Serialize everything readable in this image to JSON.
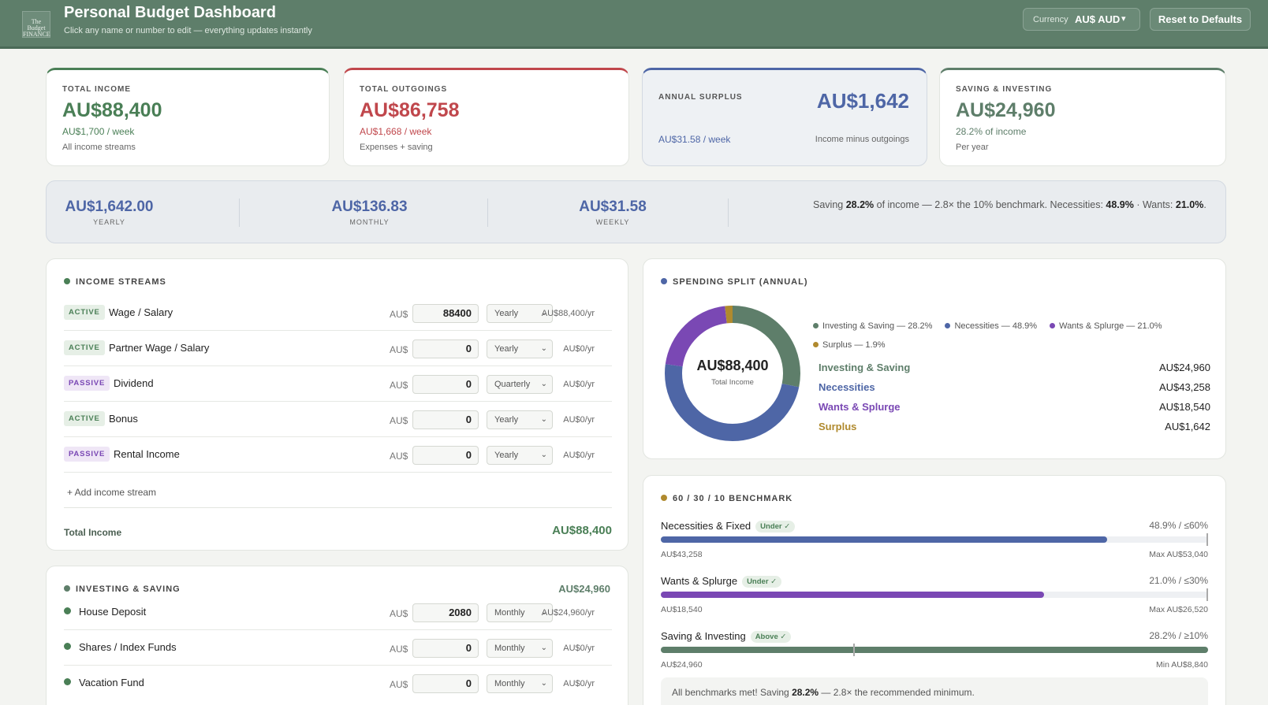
{
  "header": {
    "logo_text": "The Budget FINANCE",
    "title": "Personal Budget Dashboard",
    "subtitle": "Click any name or number to edit — everything updates instantly",
    "currency_label": "Currency",
    "currency_value": "AU$ AUD",
    "reset_label": "Reset to Defaults"
  },
  "stats": {
    "income": {
      "label": "TOTAL INCOME",
      "value": "AU$88,400",
      "sub": "AU$1,700 / week",
      "note": "All income streams"
    },
    "outgoings": {
      "label": "TOTAL OUTGOINGS",
      "value": "AU$86,758",
      "sub": "AU$1,668 / week",
      "note": "Expenses + saving"
    },
    "surplus": {
      "label": "ANNUAL SURPLUS",
      "value": "AU$1,642",
      "sub": "AU$31.58 / week",
      "note": "Income minus outgoings"
    },
    "saving": {
      "label": "SAVING & INVESTING",
      "value": "AU$24,960",
      "sub": "28.2% of income",
      "note": "Per year"
    }
  },
  "surplus_strip": {
    "yearly": {
      "value": "AU$1,642.00",
      "label": "YEARLY"
    },
    "monthly": {
      "value": "AU$136.83",
      "label": "MONTHLY"
    },
    "weekly": {
      "value": "AU$31.58",
      "label": "WEEKLY"
    },
    "msg_pre": "Saving ",
    "msg_saving": "28.2%",
    "msg_mid": " of income — 2.8× the 10% benchmark. Necessities: ",
    "msg_nec": "48.9%",
    "msg_mid2": " · Wants: ",
    "msg_wants": "21.0%",
    "msg_end": "."
  },
  "income_section": {
    "title": "INCOME STREAMS",
    "currency_prefix": "AU$",
    "rows": [
      {
        "badge": "ACTIVE",
        "name": "Wage / Salary",
        "amount": "88400",
        "frequency": "Yearly",
        "per_year": "AU$88,400/yr"
      },
      {
        "badge": "ACTIVE",
        "name": "Partner Wage / Salary",
        "amount": "0",
        "frequency": "Yearly",
        "per_year": "AU$0/yr"
      },
      {
        "badge": "PASSIVE",
        "name": "Dividend",
        "amount": "0",
        "frequency": "Quarterly",
        "per_year": "AU$0/yr"
      },
      {
        "badge": "ACTIVE",
        "name": "Bonus",
        "amount": "0",
        "frequency": "Yearly",
        "per_year": "AU$0/yr"
      },
      {
        "badge": "PASSIVE",
        "name": "Rental Income",
        "amount": "0",
        "frequency": "Yearly",
        "per_year": "AU$0/yr"
      }
    ],
    "add_label": "+ Add income stream",
    "total_label": "Total Income",
    "total_value": "AU$88,400"
  },
  "investing_section": {
    "title": "INVESTING & SAVING",
    "total": "AU$24,960",
    "currency_prefix": "AU$",
    "rows": [
      {
        "name": "House Deposit",
        "amount": "2080",
        "frequency": "Monthly",
        "per_year": "AU$24,960/yr"
      },
      {
        "name": "Shares / Index Funds",
        "amount": "0",
        "frequency": "Monthly",
        "per_year": "AU$0/yr"
      },
      {
        "name": "Vacation Fund",
        "amount": "0",
        "frequency": "Monthly",
        "per_year": "AU$0/yr"
      }
    ]
  },
  "spending_split": {
    "title": "SPENDING SPLIT (ANNUAL)",
    "center_value": "AU$88,400",
    "center_label": "Total Income",
    "legend": [
      {
        "label": "Investing & Saving — 28.2%",
        "color": "#5e7e6a"
      },
      {
        "label": "Necessities — 48.9%",
        "color": "#4e66a6"
      },
      {
        "label": "Wants & Splurge — 21.0%",
        "color": "#7a48b4"
      },
      {
        "label": "Surplus — 1.9%",
        "color": "#b08a2e"
      }
    ],
    "rows": [
      {
        "name": "Investing & Saving",
        "value": "AU$24,960"
      },
      {
        "name": "Necessities",
        "value": "AU$43,258"
      },
      {
        "name": "Wants & Splurge",
        "value": "AU$18,540"
      },
      {
        "name": "Surplus",
        "value": "AU$1,642"
      }
    ]
  },
  "chart_data": {
    "type": "pie",
    "categories": [
      "Investing & Saving",
      "Necessities",
      "Wants & Splurge",
      "Surplus"
    ],
    "values": [
      24960,
      43258,
      18540,
      1642
    ],
    "colors": [
      "#5e7e6a",
      "#4e66a6",
      "#7a48b4",
      "#b08a2e"
    ],
    "title": "SPENDING SPLIT (ANNUAL)"
  },
  "benchmark": {
    "title": "60 / 30 / 10 BENCHMARK",
    "items": [
      {
        "name": "Necessities & Fixed",
        "tag": "Under ✓",
        "ratio": "48.9% / ≤60%",
        "fill_pct": 81.5,
        "mark_pct": 100,
        "color": "#4e66a6",
        "amount": "AU$43,258",
        "limit": "Max AU$53,040"
      },
      {
        "name": "Wants & Splurge",
        "tag": "Under ✓",
        "ratio": "21.0% / ≤30%",
        "fill_pct": 70,
        "mark_pct": 100,
        "color": "#7a48b4",
        "amount": "AU$18,540",
        "limit": "Max AU$26,520"
      },
      {
        "name": "Saving & Investing",
        "tag": "Above ✓",
        "ratio": "28.2% / ≥10%",
        "fill_pct": 100,
        "mark_pct": 35.5,
        "color": "#5e7e6a",
        "amount": "AU$24,960",
        "limit": "Min AU$8,840"
      }
    ],
    "msg_pre": "All benchmarks met! Saving ",
    "msg_bold": "28.2%",
    "msg_post": " — 2.8× the recommended minimum."
  }
}
